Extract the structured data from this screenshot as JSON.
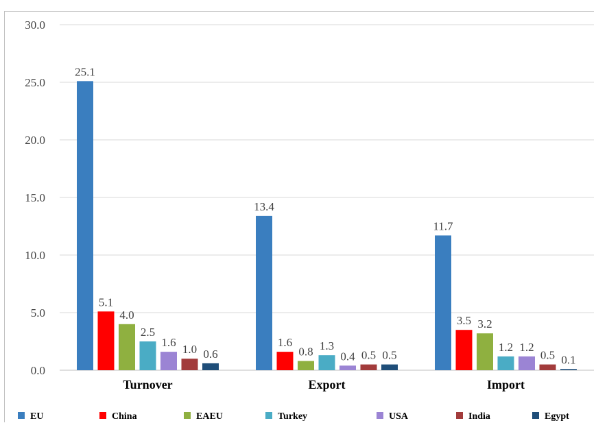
{
  "chart_data": {
    "type": "bar",
    "categories": [
      "Turnover",
      "Export",
      "Import"
    ],
    "series": [
      {
        "name": "EU",
        "color": "#3a7ebf",
        "values": [
          25.1,
          13.4,
          11.7
        ]
      },
      {
        "name": "China",
        "color": "#ff0000",
        "values": [
          5.1,
          1.6,
          3.5
        ]
      },
      {
        "name": "EAEU",
        "color": "#8fb040",
        "values": [
          4.0,
          0.8,
          3.2
        ]
      },
      {
        "name": "Turkey",
        "color": "#4aacc5",
        "values": [
          2.5,
          1.3,
          1.2
        ]
      },
      {
        "name": "USA",
        "color": "#9b84d4",
        "values": [
          1.6,
          0.4,
          1.2
        ]
      },
      {
        "name": "India",
        "color": "#a23b3b",
        "values": [
          1.0,
          0.5,
          0.5
        ]
      },
      {
        "name": "Egypt",
        "color": "#1f4e79",
        "values": [
          0.6,
          0.5,
          0.1
        ]
      }
    ],
    "ylim": [
      0,
      30
    ],
    "yticks": [
      "0.0",
      "5.0",
      "10.0",
      "15.0",
      "20.0",
      "25.0",
      "30.0"
    ],
    "data_labels": [
      [
        "25.1",
        "5.1",
        "4.0",
        "2.5",
        "1.6",
        "1.0",
        "0.6"
      ],
      [
        "13.4",
        "1.6",
        "0.8",
        "1.3",
        "0.4",
        "0.5",
        "0.5"
      ],
      [
        "11.7",
        "3.5",
        "3.2",
        "1.2",
        "1.2",
        "0.5",
        "0.1"
      ]
    ],
    "grid": true,
    "legend_position": "bottom"
  }
}
